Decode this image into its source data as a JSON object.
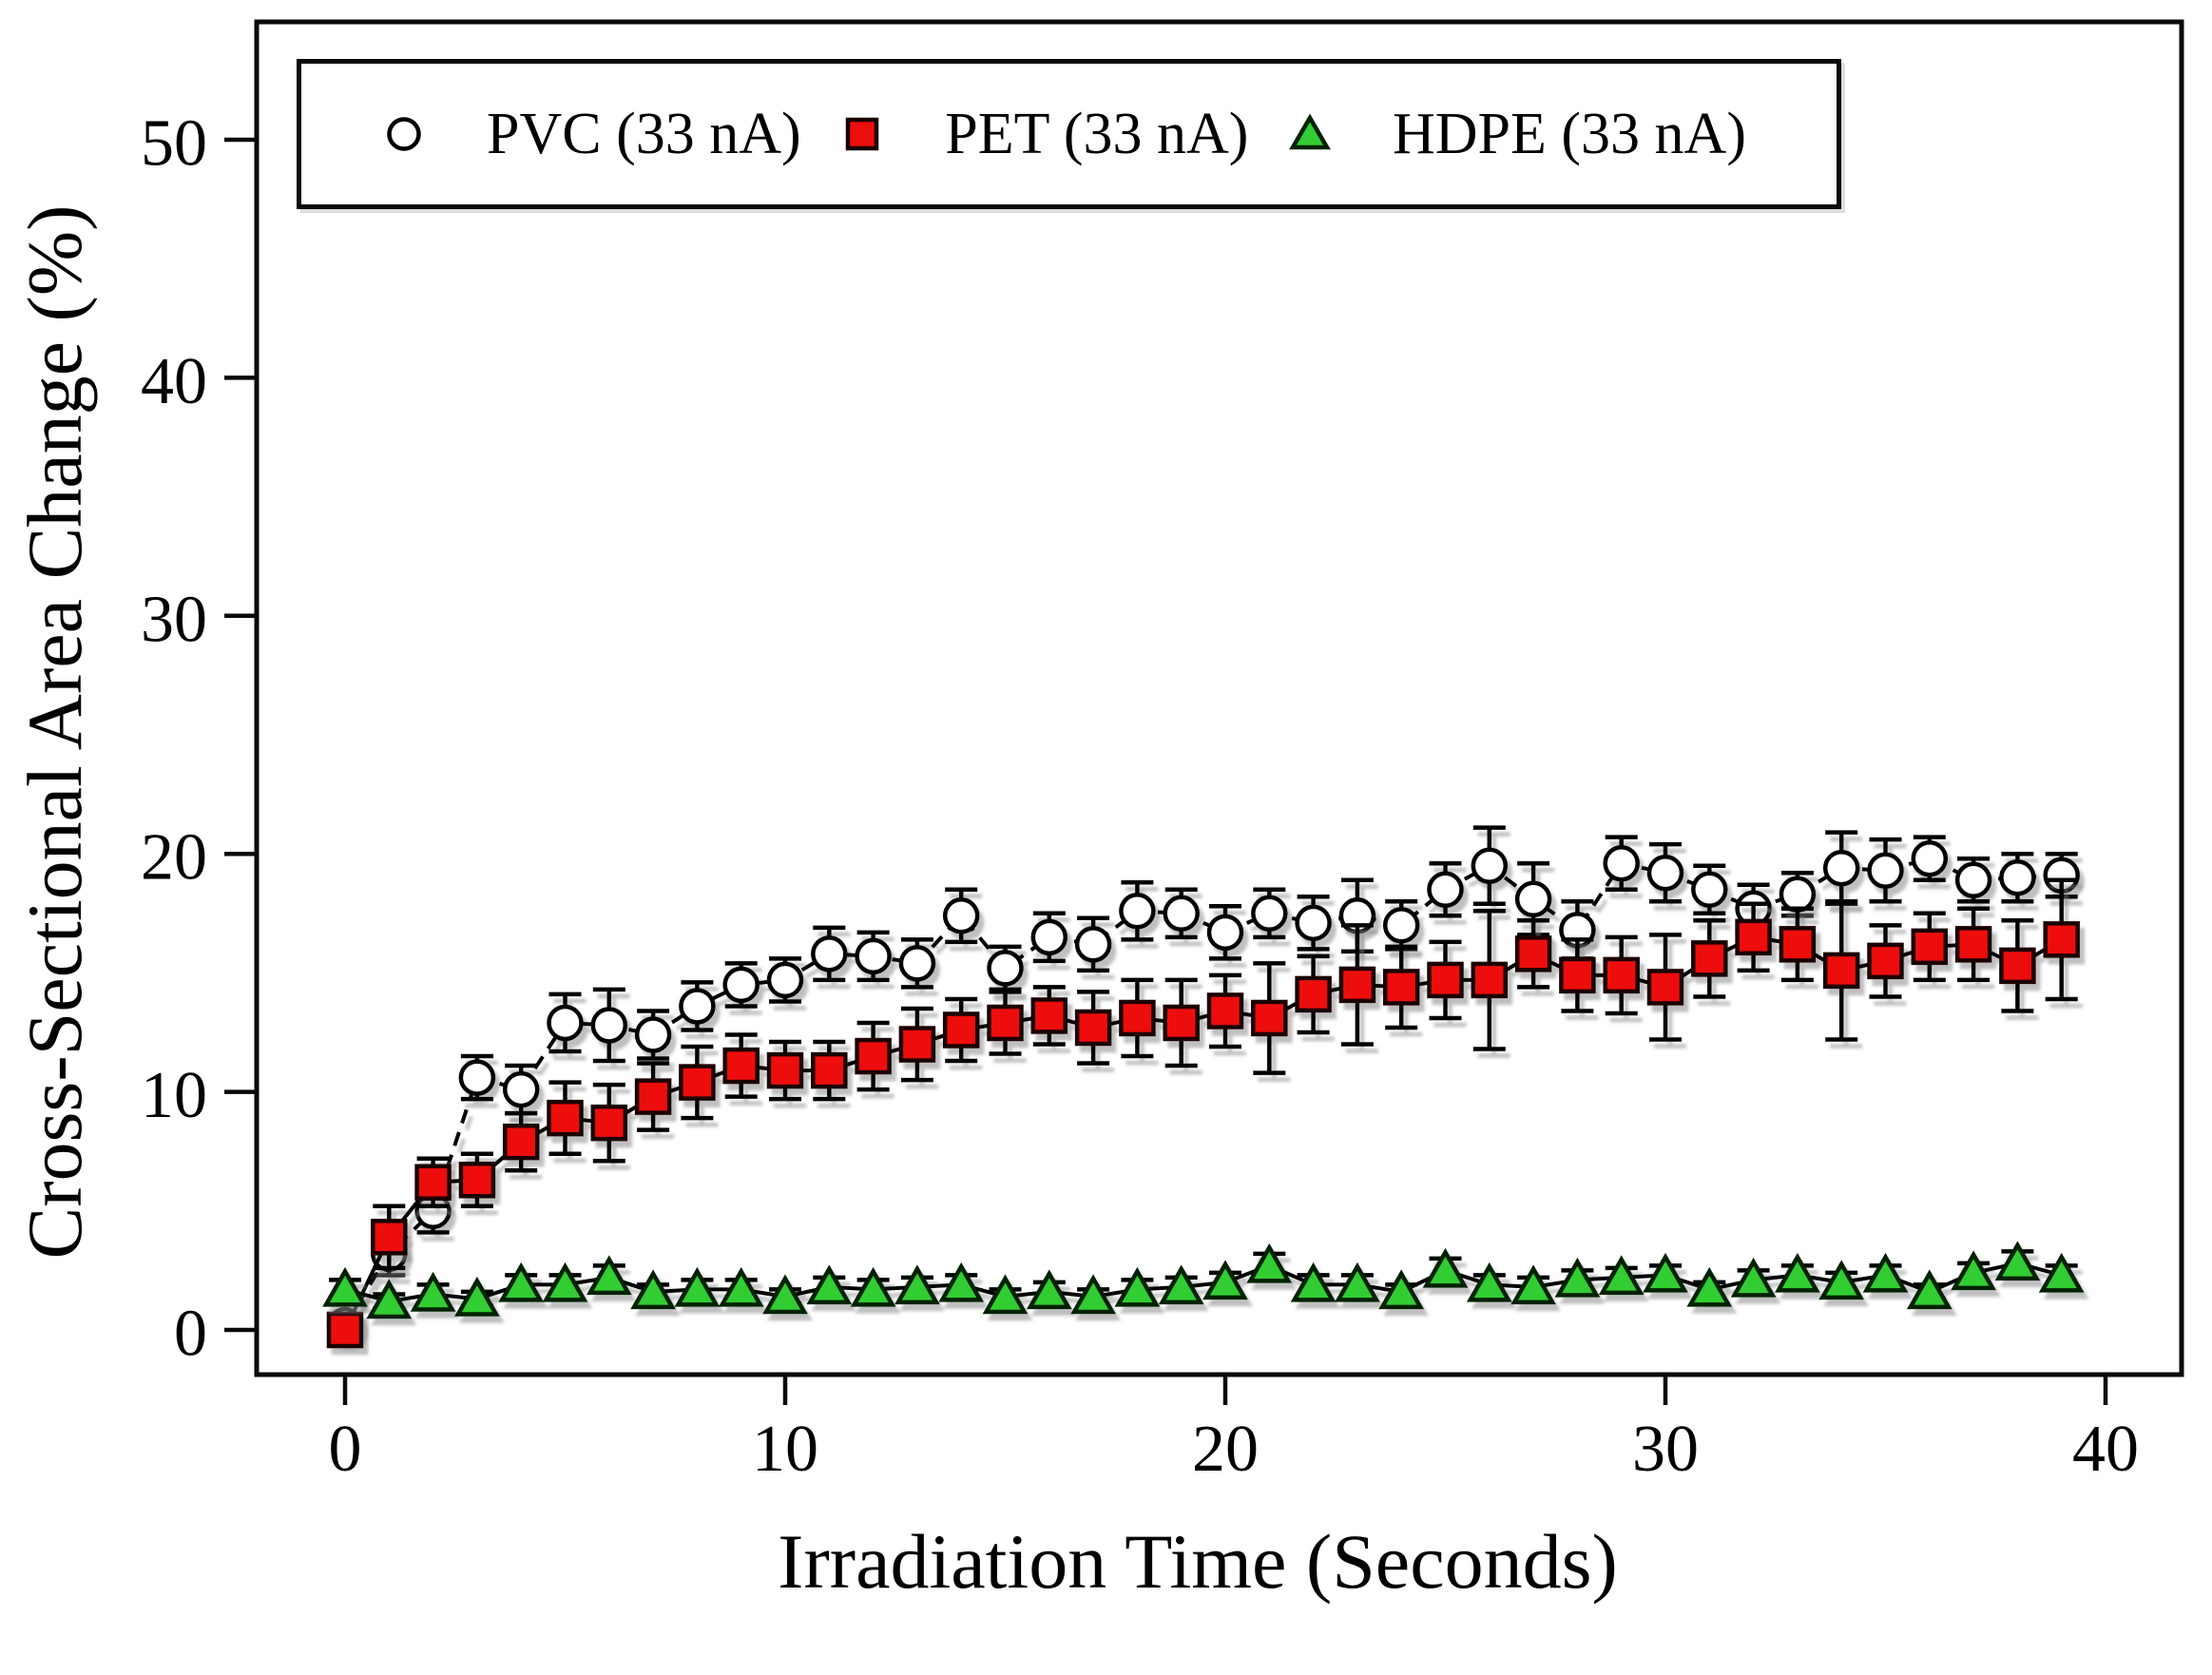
{
  "figure": {
    "background": "#ffffff",
    "frame_color": "#0a0a0a"
  },
  "chart_data": {
    "type": "line",
    "subtype": "scatter-line-with-error-bars",
    "title": "",
    "xlabel": "Irradiation Time (Seconds)",
    "ylabel": "Cross-Sectional Area Change (%)",
    "xlim": [
      -2,
      41.7
    ],
    "ylim": [
      -1.9,
      56.8
    ],
    "x_ticks": [
      0,
      10,
      20,
      30,
      40
    ],
    "y_ticks": [
      0,
      10,
      20,
      30,
      40,
      50
    ],
    "grid": false,
    "legend_position": "top-inside",
    "x": [
      0,
      1,
      2,
      3,
      4,
      5,
      6,
      7,
      8,
      9,
      10,
      11,
      12,
      13,
      14,
      15,
      16,
      17,
      18,
      19,
      20,
      21,
      22,
      23,
      24,
      25,
      26,
      27,
      28,
      29,
      30,
      31,
      32,
      33,
      34,
      35,
      36,
      37,
      38,
      39
    ],
    "series": [
      {
        "name": "PVC (33 nA)",
        "marker": "circle",
        "marker_fill": "#ffffff",
        "marker_stroke": "#000000",
        "line_style": "dashed",
        "line_color": "#000000",
        "values": [
          0.2,
          3.2,
          5.0,
          10.6,
          10.1,
          12.9,
          12.8,
          12.4,
          13.6,
          14.5,
          14.7,
          15.8,
          15.7,
          15.4,
          17.4,
          15.2,
          16.5,
          16.2,
          17.6,
          17.5,
          16.7,
          17.5,
          17.1,
          17.4,
          17.0,
          18.5,
          19.5,
          18.1,
          16.8,
          19.6,
          19.2,
          18.5,
          17.7,
          18.3,
          19.4,
          19.3,
          19.8,
          18.9,
          19.0,
          19.1
        ],
        "errors": [
          0.4,
          0.9,
          0.9,
          0.9,
          1.0,
          1.2,
          1.5,
          1.0,
          1.0,
          0.9,
          0.9,
          1.1,
          1.0,
          1.0,
          1.1,
          0.9,
          1.0,
          1.1,
          1.2,
          1.0,
          1.1,
          1.0,
          1.1,
          1.5,
          1.0,
          1.1,
          1.6,
          1.5,
          1.2,
          1.1,
          1.2,
          1.0,
          1.0,
          0.9,
          1.5,
          1.3,
          0.9,
          0.9,
          1.0,
          0.9
        ]
      },
      {
        "name": "PET (33 nA)",
        "marker": "square",
        "marker_fill": "#ed0e0e",
        "marker_stroke": "#1a0000",
        "line_style": "solid",
        "line_color": "#000000",
        "values": [
          0.0,
          3.9,
          6.2,
          6.3,
          7.9,
          8.9,
          8.7,
          9.8,
          10.4,
          11.1,
          10.9,
          10.9,
          11.5,
          12.0,
          12.6,
          12.9,
          13.2,
          12.7,
          13.1,
          12.9,
          13.4,
          13.1,
          14.1,
          14.5,
          14.4,
          14.7,
          14.7,
          15.8,
          14.9,
          14.9,
          14.4,
          15.6,
          16.5,
          16.2,
          15.1,
          15.5,
          16.1,
          16.2,
          15.3,
          16.4
        ],
        "errors": [
          0.3,
          1.3,
          1.0,
          1.1,
          1.2,
          1.5,
          1.6,
          1.4,
          1.5,
          1.3,
          1.2,
          1.2,
          1.4,
          1.5,
          1.3,
          1.3,
          1.2,
          1.5,
          1.6,
          1.8,
          1.5,
          2.3,
          1.6,
          2.5,
          1.7,
          1.6,
          2.9,
          1.4,
          1.5,
          1.6,
          2.2,
          1.6,
          1.4,
          1.5,
          2.9,
          1.5,
          1.4,
          1.5,
          1.9,
          2.5
        ]
      },
      {
        "name": "HDPE (33 nA)",
        "marker": "triangle",
        "marker_fill": "#32cd32",
        "marker_stroke": "#002200",
        "line_style": "solid",
        "line_color": "#000000",
        "values": [
          1.7,
          1.2,
          1.5,
          1.3,
          1.9,
          1.9,
          2.2,
          1.6,
          1.7,
          1.7,
          1.4,
          1.8,
          1.7,
          1.8,
          1.9,
          1.4,
          1.6,
          1.4,
          1.7,
          1.8,
          2.0,
          2.7,
          1.9,
          1.9,
          1.6,
          2.5,
          1.9,
          1.8,
          2.1,
          2.2,
          2.3,
          1.7,
          2.1,
          2.3,
          2.0,
          2.3,
          1.6,
          2.4,
          2.8,
          2.3
        ],
        "errors": [
          0.4,
          0.3,
          0.4,
          0.3,
          0.4,
          0.4,
          0.5,
          0.3,
          0.4,
          0.4,
          0.3,
          0.4,
          0.4,
          0.4,
          0.4,
          0.3,
          0.4,
          0.3,
          0.4,
          0.4,
          0.4,
          0.5,
          0.4,
          0.4,
          0.3,
          0.5,
          0.4,
          0.4,
          0.4,
          0.4,
          0.4,
          0.3,
          0.4,
          0.4,
          0.4,
          0.4,
          0.3,
          0.4,
          0.5,
          0.4
        ]
      }
    ]
  }
}
